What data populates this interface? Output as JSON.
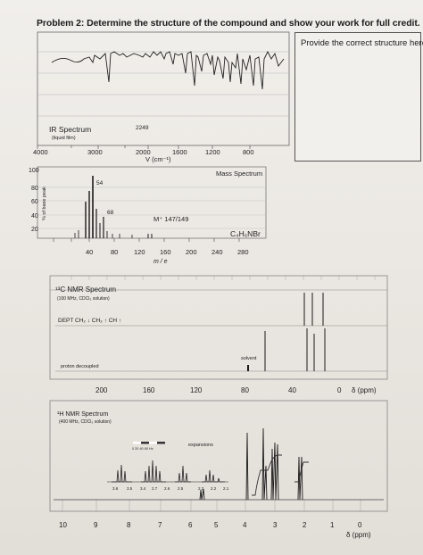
{
  "problem": {
    "title": "Problem 2: Determine the structure of the compound and show your work for full credit.",
    "answer_box_label": "Provide the correct structure here"
  },
  "ir": {
    "title": "IR Spectrum",
    "subtitle": "(liquid film)",
    "peak_label": "2249",
    "x_ticks": [
      "4000",
      "3000",
      "2000",
      "1600",
      "1200",
      "800"
    ],
    "x_label": "V  (cm⁻¹)"
  },
  "mass": {
    "title": "Mass Spectrum",
    "formula": "C₄H₆NBr",
    "y_label": "% of base peak",
    "y_ticks": [
      "100",
      "80",
      "60",
      "40",
      "20"
    ],
    "x_ticks": [
      "40",
      "80",
      "120",
      "160",
      "200",
      "240",
      "280"
    ],
    "x_label": "m / e",
    "peak_labels": [
      "54",
      "68"
    ],
    "molecular_ion": "M⁺ 147/149"
  },
  "c13": {
    "title": "¹³C NMR Spectrum",
    "subtitle": "(100 MHz, CDCl₃ solution)",
    "dept_label": "DEPT  CH₂ ↓  CH₃ ↑  CH ↑",
    "decoupled_label": "proton decoupled",
    "solvent_label": "solvent",
    "x_ticks": [
      "200",
      "160",
      "120",
      "80",
      "40",
      "0"
    ],
    "unit": "δ (ppm)"
  },
  "h1": {
    "title": "¹H NMR Spectrum",
    "subtitle": "(400 MHz, CDCl₃ solution)",
    "expansions_label": "expansions",
    "scale_ticks": "0  20  40  60  Hz",
    "expansion_ticks": [
      "3.6",
      "3.5",
      "3.4",
      "2.7",
      "2.6",
      "2.5",
      "2.3",
      "2.2",
      "2.1"
    ],
    "x_ticks": [
      "10",
      "9",
      "8",
      "7",
      "6",
      "5",
      "4",
      "3",
      "2",
      "1",
      "0"
    ],
    "unit": "δ (ppm)"
  }
}
